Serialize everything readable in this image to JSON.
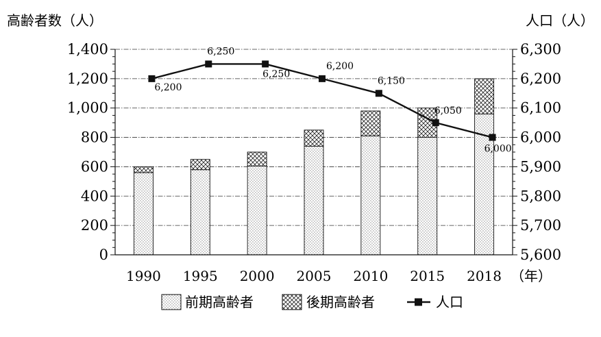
{
  "chart_data": {
    "type": "bar",
    "categories": [
      "1990",
      "1995",
      "2000",
      "2005",
      "2010",
      "2015",
      "2018"
    ],
    "x_unit": "（年）",
    "left_axis": {
      "title": "高齢者数（人）",
      "ylim": [
        0,
        1400
      ],
      "ticks": [
        0,
        200,
        400,
        600,
        800,
        1000,
        1200,
        1400
      ],
      "tick_labels": [
        "0",
        "200",
        "400",
        "600",
        "800",
        "1,000",
        "1,200",
        "1,400"
      ]
    },
    "right_axis": {
      "title": "人口（人）",
      "ylim": [
        5600,
        6300
      ],
      "ticks": [
        5600,
        5700,
        5800,
        5900,
        6000,
        6100,
        6200,
        6300
      ],
      "tick_labels": [
        "5,600",
        "5,700",
        "5,800",
        "5,900",
        "6,000",
        "6,100",
        "6,200",
        "6,300"
      ]
    },
    "series": [
      {
        "name": "前期高齢者",
        "type": "bar-stacked",
        "axis": "left",
        "pattern": "dots",
        "values": [
          560,
          580,
          605,
          740,
          810,
          800,
          960
        ]
      },
      {
        "name": "後期高齢者",
        "type": "bar-stacked",
        "axis": "left",
        "pattern": "crosshatch",
        "values": [
          40,
          70,
          95,
          110,
          170,
          200,
          240
        ]
      },
      {
        "name": "人口",
        "type": "line",
        "axis": "right",
        "marker": "square",
        "values": [
          6200,
          6250,
          6250,
          6200,
          6150,
          6050,
          6000
        ],
        "data_labels": [
          "6,200",
          "6,250",
          "6,250",
          "6,200",
          "6,150",
          "6,050",
          "6,000"
        ]
      }
    ],
    "grid": "horizontal dash-dot",
    "legend_position": "bottom"
  }
}
